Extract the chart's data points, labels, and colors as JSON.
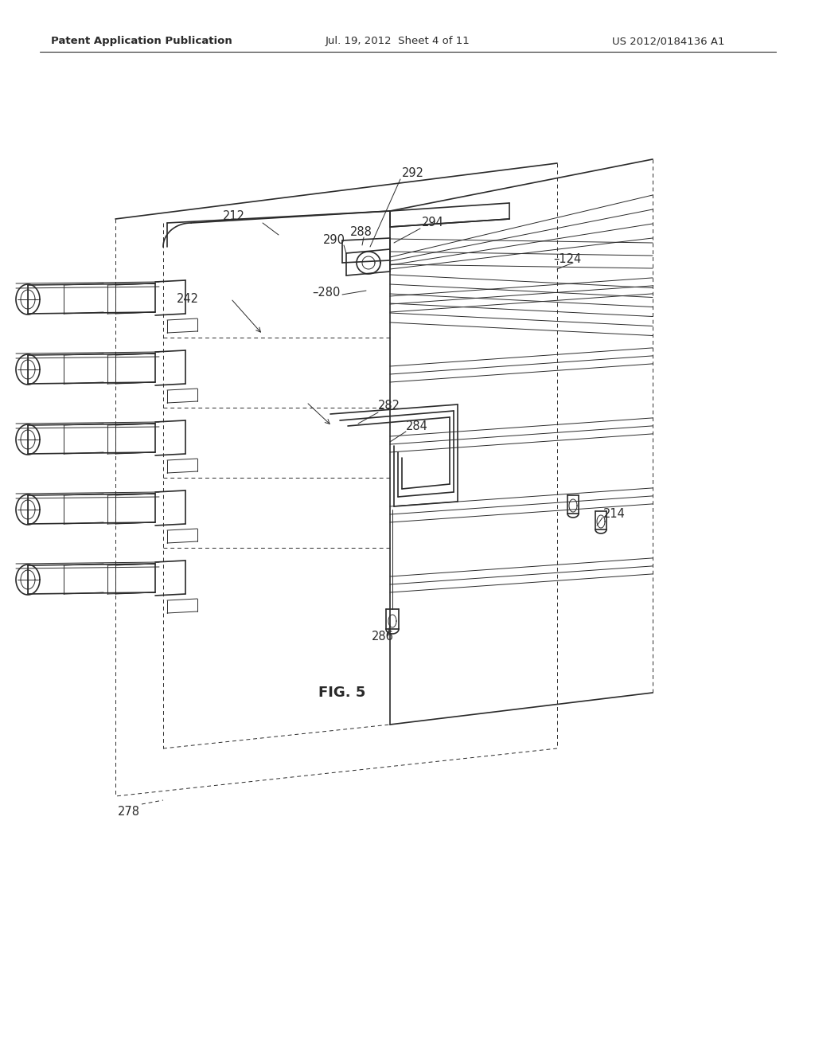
{
  "bg_color": "#ffffff",
  "line_color": "#2a2a2a",
  "lw": 1.2,
  "tlw": 0.7,
  "header_left": "Patent Application Publication",
  "header_center": "Jul. 19, 2012  Sheet 4 of 11",
  "header_right": "US 2012/0184136 A1",
  "fig_label": "FIG. 5",
  "label_fontsize": 10.5
}
